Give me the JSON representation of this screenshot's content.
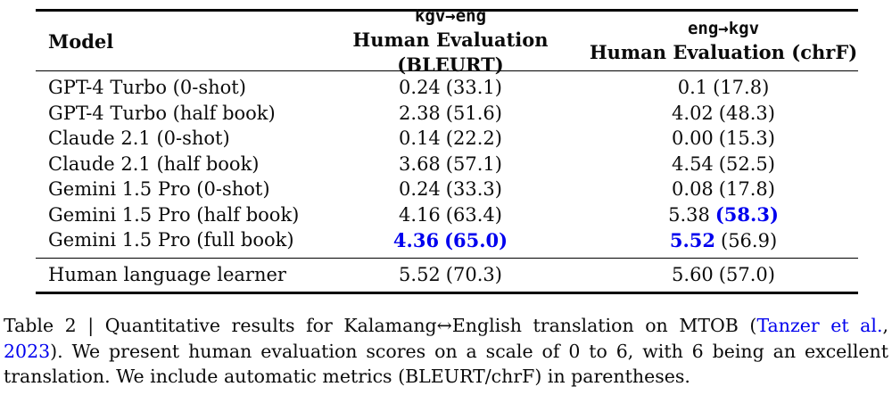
{
  "colors": {
    "highlight_blue": "#0000EE",
    "link_blue": "#0000EE",
    "rule_black": "#000000",
    "text_black": "#0b0b0b"
  },
  "table": {
    "header": {
      "model_label": "Model",
      "col_kgv_eng": {
        "line1": "kgv→eng",
        "line2": "Human Evaluation (BLEURT)"
      },
      "col_eng_kgv": {
        "line1": "eng→kgv",
        "line2": "Human Evaluation (chrF)"
      }
    },
    "rows": [
      {
        "model": "GPT-4 Turbo (0-shot)",
        "kgv_eng": {
          "score": "0.24",
          "paren": "(33.1)",
          "score_hl": false,
          "paren_hl": false
        },
        "eng_kgv": {
          "score": "0.1",
          "paren": "(17.8)",
          "score_hl": false,
          "paren_hl": false
        }
      },
      {
        "model": "GPT-4 Turbo (half book)",
        "kgv_eng": {
          "score": "2.38",
          "paren": "(51.6)",
          "score_hl": false,
          "paren_hl": false
        },
        "eng_kgv": {
          "score": "4.02",
          "paren": "(48.3)",
          "score_hl": false,
          "paren_hl": false
        }
      },
      {
        "model": "Claude 2.1 (0-shot)",
        "kgv_eng": {
          "score": "0.14",
          "paren": "(22.2)",
          "score_hl": false,
          "paren_hl": false
        },
        "eng_kgv": {
          "score": "0.00",
          "paren": "(15.3)",
          "score_hl": false,
          "paren_hl": false
        }
      },
      {
        "model": "Claude 2.1 (half book)",
        "kgv_eng": {
          "score": "3.68",
          "paren": "(57.1)",
          "score_hl": false,
          "paren_hl": false
        },
        "eng_kgv": {
          "score": "4.54",
          "paren": "(52.5)",
          "score_hl": false,
          "paren_hl": false
        }
      },
      {
        "model": "Gemini 1.5 Pro (0-shot)",
        "kgv_eng": {
          "score": "0.24",
          "paren": "(33.3)",
          "score_hl": false,
          "paren_hl": false
        },
        "eng_kgv": {
          "score": "0.08",
          "paren": "(17.8)",
          "score_hl": false,
          "paren_hl": false
        }
      },
      {
        "model": "Gemini 1.5 Pro (half book)",
        "kgv_eng": {
          "score": "4.16",
          "paren": "(63.4)",
          "score_hl": false,
          "paren_hl": false
        },
        "eng_kgv": {
          "score": "5.38",
          "paren": "(58.3)",
          "score_hl": false,
          "paren_hl": true
        }
      },
      {
        "model": "Gemini 1.5 Pro (full book)",
        "kgv_eng": {
          "score": "4.36",
          "paren": "(65.0)",
          "score_hl": true,
          "paren_hl": true
        },
        "eng_kgv": {
          "score": "5.52",
          "paren": "(56.9)",
          "score_hl": true,
          "paren_hl": false
        }
      }
    ],
    "footer_rows": [
      {
        "model": "Human language learner",
        "kgv_eng": {
          "score": "5.52",
          "paren": "(70.3)",
          "score_hl": false,
          "paren_hl": false
        },
        "eng_kgv": {
          "score": "5.60",
          "paren": "(57.0)",
          "score_hl": false,
          "paren_hl": false
        }
      }
    ]
  },
  "caption": {
    "prefix": "Table 2 | Quantitative results for Kalamang↔English translation on MTOB (",
    "link1": "Tanzer et al.",
    "mid": ", ",
    "link2": "2023",
    "suffix": "). We present human evaluation scores on a scale of 0 to 6, with 6 being an excellent translation. We include automatic metrics (BLEURT/chrF) in parentheses."
  }
}
